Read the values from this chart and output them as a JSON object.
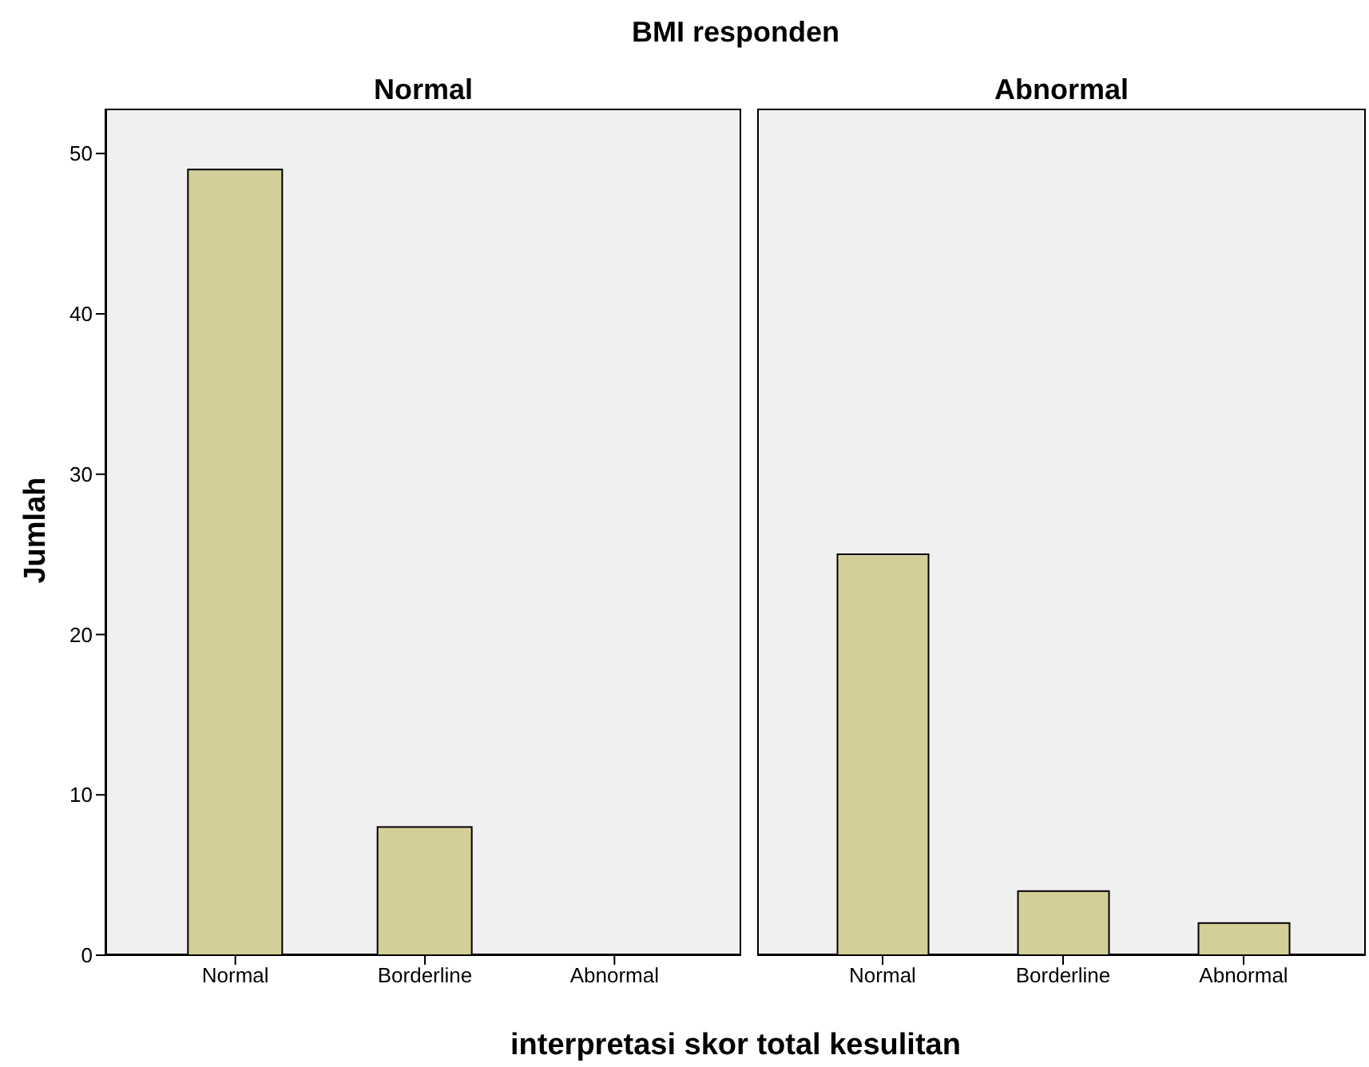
{
  "chart_data": [
    {
      "type": "bar",
      "subtitle": "BMI responden",
      "title": "Normal",
      "xlabel": "interpretasi skor total kesulitan",
      "ylabel": "Jumlah",
      "categories": [
        "Normal",
        "Borderline",
        "Abnormal"
      ],
      "values": [
        49,
        8,
        0
      ],
      "color": "#d4cf98",
      "ylim": [
        0,
        52.8
      ],
      "yticks": [
        0,
        10,
        20,
        30,
        40,
        50
      ]
    },
    {
      "type": "bar",
      "title": "Abnormal",
      "categories": [
        "Normal",
        "Borderline",
        "Abnormal"
      ],
      "values": [
        25,
        4,
        2
      ],
      "color": "#d4cf98",
      "ylim": [
        0,
        52.8
      ],
      "yticks": [
        0,
        10,
        20,
        30,
        40,
        50
      ],
      "tick_labels": "x"
    }
  ]
}
